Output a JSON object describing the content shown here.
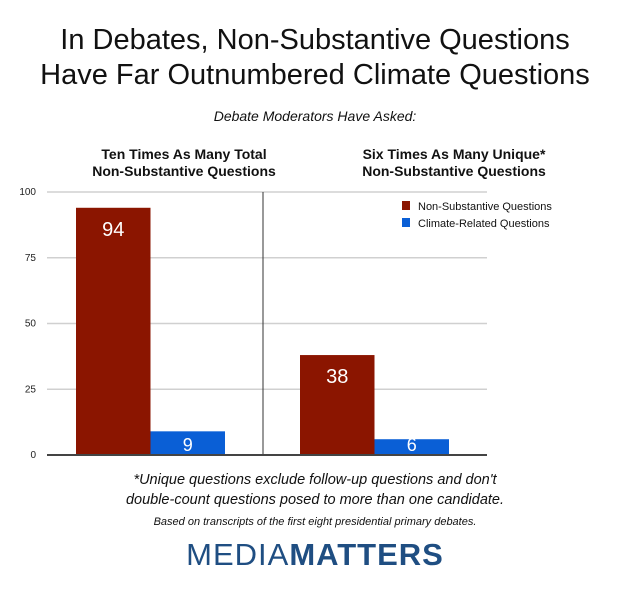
{
  "title_lines": [
    "In Debates, Non-Substantive Questions",
    "Have Far Outnumbered Climate Questions"
  ],
  "subtitle": "Debate Moderators Have Asked:",
  "footnote_lines": [
    "*Unique questions exclude follow-up questions and don't",
    "double-count questions posed to more than one candidate."
  ],
  "source": "Based on transcripts of the first eight presidential primary debates.",
  "logo": {
    "light": "MEDIA",
    "bold": "MATTERS"
  },
  "chart_data": {
    "type": "bar",
    "categories": [
      "Ten Times As Many Total Non-Substantive Questions",
      "Six Times As Many Unique* Non-Substantive Questions"
    ],
    "category_lines": [
      [
        "Ten Times As Many Total",
        "Non-Substantive Questions"
      ],
      [
        "Six Times As Many Unique*",
        "Non-Substantive Questions"
      ]
    ],
    "series": [
      {
        "name": "Non-Substantive Questions",
        "values": [
          94,
          38
        ],
        "color": "#8b1500"
      },
      {
        "name": "Climate-Related Questions",
        "values": [
          9,
          6
        ],
        "color": "#0a5fd6"
      }
    ],
    "ylim": [
      0,
      100
    ],
    "yticks": [
      "0",
      "25",
      "50",
      "75",
      "100"
    ],
    "grid": true,
    "legend": "top-right",
    "data_labels": true
  }
}
